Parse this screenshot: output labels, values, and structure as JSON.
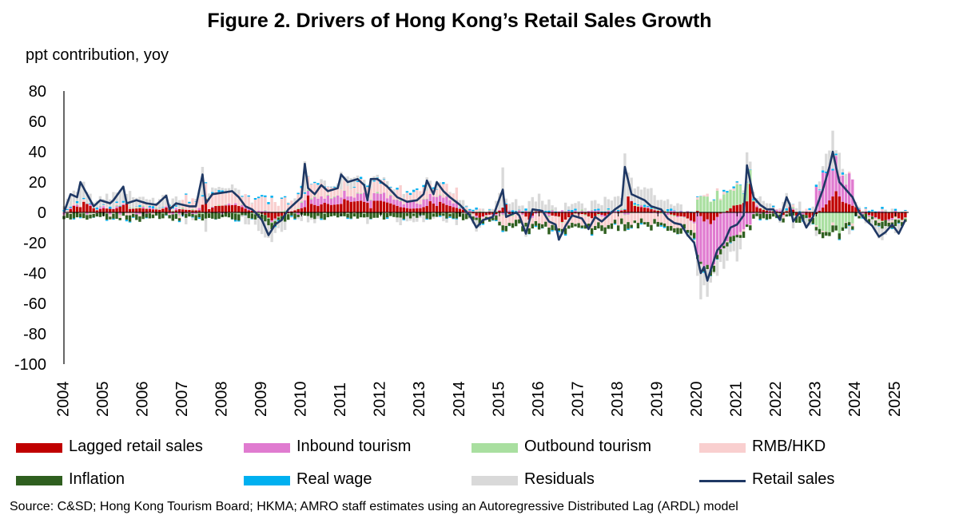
{
  "figure": {
    "title": "Figure 2. Drivers of Hong Kong’s Retail Sales Growth",
    "source": "Source: C&SD; Hong Kong Tourism Board;  HKMA; AMRO staff estimates using an Autoregressive Distributed Lag (ARDL) model"
  },
  "chart_data": {
    "type": "bar",
    "stacked": true,
    "title": "Figure 2. Drivers of Hong Kong’s Retail Sales Growth",
    "ylabel": "ppt contribution, yoy",
    "xlabel": "",
    "ylim": [
      -100,
      80
    ],
    "yticks": [
      80,
      60,
      40,
      20,
      0,
      -20,
      -40,
      -60,
      -80,
      -100
    ],
    "x_tick_labels": [
      "2004",
      "2005",
      "2006",
      "2007",
      "2008",
      "2009",
      "2010",
      "2011",
      "2012",
      "2013",
      "2014",
      "2015",
      "2016",
      "2017",
      "2018",
      "2019",
      "2020",
      "2021",
      "2022",
      "2023",
      "2024",
      "2025"
    ],
    "frequency": "monthly",
    "legend_position": "bottom",
    "grid": false,
    "series_meta": [
      {
        "name": "Lagged retail sales",
        "color": "#C00000",
        "kind": "bar"
      },
      {
        "name": "Inbound tourism",
        "color": "#E07BD0",
        "kind": "bar"
      },
      {
        "name": "Outbound tourism",
        "color": "#A9DFA0",
        "kind": "bar"
      },
      {
        "name": "RMB/HKD",
        "color": "#F9CFCF",
        "kind": "bar"
      },
      {
        "name": "Inflation",
        "color": "#2F5F1F",
        "kind": "bar"
      },
      {
        "name": "Real wage",
        "color": "#00B0F0",
        "kind": "bar"
      },
      {
        "name": "Residuals",
        "color": "#D9D9D9",
        "kind": "bar"
      },
      {
        "name": "Retail sales",
        "color": "#1F3864",
        "kind": "line"
      }
    ],
    "retail_sales_points": [
      [
        "2004-01",
        0
      ],
      [
        "2004-03",
        12
      ],
      [
        "2004-05",
        10
      ],
      [
        "2004-06",
        20
      ],
      [
        "2004-08",
        12
      ],
      [
        "2004-10",
        4
      ],
      [
        "2004-12",
        8
      ],
      [
        "2005-03",
        6
      ],
      [
        "2005-04",
        8
      ],
      [
        "2005-07",
        17
      ],
      [
        "2005-08",
        6
      ],
      [
        "2005-11",
        8
      ],
      [
        "2006-02",
        6
      ],
      [
        "2006-05",
        5
      ],
      [
        "2006-08",
        11
      ],
      [
        "2006-09",
        2
      ],
      [
        "2006-11",
        6
      ],
      [
        "2007-01",
        5
      ],
      [
        "2007-03",
        4
      ],
      [
        "2007-05",
        4
      ],
      [
        "2007-07",
        25
      ],
      [
        "2007-08",
        6
      ],
      [
        "2007-10",
        12
      ],
      [
        "2008-01",
        13
      ],
      [
        "2008-04",
        14
      ],
      [
        "2008-06",
        10
      ],
      [
        "2008-08",
        4
      ],
      [
        "2008-10",
        2
      ],
      [
        "2008-11",
        0
      ],
      [
        "2009-01",
        -5
      ],
      [
        "2009-03",
        -15
      ],
      [
        "2009-05",
        -8
      ],
      [
        "2009-07",
        -5
      ],
      [
        "2009-09",
        2
      ],
      [
        "2009-12",
        8
      ],
      [
        "2010-01",
        10
      ],
      [
        "2010-02",
        32
      ],
      [
        "2010-03",
        16
      ],
      [
        "2010-05",
        12
      ],
      [
        "2010-07",
        18
      ],
      [
        "2010-09",
        14
      ],
      [
        "2010-12",
        16
      ],
      [
        "2011-01",
        25
      ],
      [
        "2011-03",
        20
      ],
      [
        "2011-06",
        22
      ],
      [
        "2011-08",
        18
      ],
      [
        "2011-09",
        8
      ],
      [
        "2011-10",
        22
      ],
      [
        "2011-12",
        22
      ],
      [
        "2012-03",
        17
      ],
      [
        "2012-06",
        10
      ],
      [
        "2012-09",
        7
      ],
      [
        "2012-12",
        8
      ],
      [
        "2013-02",
        12
      ],
      [
        "2013-03",
        21
      ],
      [
        "2013-05",
        12
      ],
      [
        "2013-06",
        20
      ],
      [
        "2013-08",
        14
      ],
      [
        "2013-10",
        10
      ],
      [
        "2014-01",
        5
      ],
      [
        "2014-04",
        -2
      ],
      [
        "2014-06",
        -10
      ],
      [
        "2014-08",
        -5
      ],
      [
        "2014-11",
        -3
      ],
      [
        "2015-02",
        15
      ],
      [
        "2015-03",
        -3
      ],
      [
        "2015-06",
        0
      ],
      [
        "2015-07",
        -2
      ],
      [
        "2015-09",
        -14
      ],
      [
        "2015-11",
        2
      ],
      [
        "2016-02",
        1
      ],
      [
        "2016-04",
        -6
      ],
      [
        "2016-06",
        -8
      ],
      [
        "2016-07",
        -18
      ],
      [
        "2016-09",
        -9
      ],
      [
        "2016-11",
        -2
      ],
      [
        "2017-02",
        -4
      ],
      [
        "2017-04",
        -11
      ],
      [
        "2017-06",
        -3
      ],
      [
        "2017-08",
        -6
      ],
      [
        "2017-10",
        -2
      ],
      [
        "2017-12",
        2
      ],
      [
        "2018-02",
        5
      ],
      [
        "2018-03",
        30
      ],
      [
        "2018-05",
        12
      ],
      [
        "2018-07",
        10
      ],
      [
        "2018-09",
        8
      ],
      [
        "2018-11",
        4
      ],
      [
        "2019-02",
        2
      ],
      [
        "2019-04",
        -4
      ],
      [
        "2019-06",
        -7
      ],
      [
        "2019-08",
        -8
      ],
      [
        "2019-10",
        -15
      ],
      [
        "2019-12",
        -20
      ],
      [
        "2020-01",
        -30
      ],
      [
        "2020-02",
        -40
      ],
      [
        "2020-03",
        -36
      ],
      [
        "2020-04",
        -45
      ],
      [
        "2020-05",
        -38
      ],
      [
        "2020-07",
        -25
      ],
      [
        "2020-09",
        -20
      ],
      [
        "2020-11",
        -10
      ],
      [
        "2021-01",
        -8
      ],
      [
        "2021-02",
        -5
      ],
      [
        "2021-03",
        -2
      ],
      [
        "2021-04",
        31
      ],
      [
        "2021-06",
        10
      ],
      [
        "2021-08",
        5
      ],
      [
        "2021-10",
        2
      ],
      [
        "2021-12",
        2
      ],
      [
        "2022-02",
        -5
      ],
      [
        "2022-04",
        10
      ],
      [
        "2022-05",
        5
      ],
      [
        "2022-06",
        -6
      ],
      [
        "2022-08",
        0
      ],
      [
        "2022-10",
        -10
      ],
      [
        "2022-12",
        -3
      ],
      [
        "2023-03",
        15
      ],
      [
        "2023-05",
        30
      ],
      [
        "2023-06",
        40
      ],
      [
        "2023-08",
        20
      ],
      [
        "2023-10",
        15
      ],
      [
        "2023-12",
        10
      ],
      [
        "2024-02",
        0
      ],
      [
        "2024-04",
        -5
      ],
      [
        "2024-06",
        -9
      ],
      [
        "2024-08",
        -16
      ],
      [
        "2024-10",
        -13
      ],
      [
        "2024-12",
        -8
      ],
      [
        "2025-02",
        -14
      ],
      [
        "2025-04",
        -5
      ]
    ],
    "note": "Stacked monthly bar contributions and the retail sales line are approximate readings of the figure."
  },
  "legend": {
    "items": [
      {
        "label": "Lagged retail sales",
        "color": "#C00000",
        "kind": "bar"
      },
      {
        "label": "Inbound tourism",
        "color": "#E07BD0",
        "kind": "bar"
      },
      {
        "label": "Outbound tourism",
        "color": "#A9DFA0",
        "kind": "bar"
      },
      {
        "label": "RMB/HKD",
        "color": "#F9CFCF",
        "kind": "bar"
      },
      {
        "label": "Inflation",
        "color": "#2F5F1F",
        "kind": "bar"
      },
      {
        "label": "Real wage",
        "color": "#00B0F0",
        "kind": "bar"
      },
      {
        "label": "Residuals",
        "color": "#D9D9D9",
        "kind": "bar"
      },
      {
        "label": "Retail sales",
        "color": "#1F3864",
        "kind": "line"
      }
    ]
  }
}
